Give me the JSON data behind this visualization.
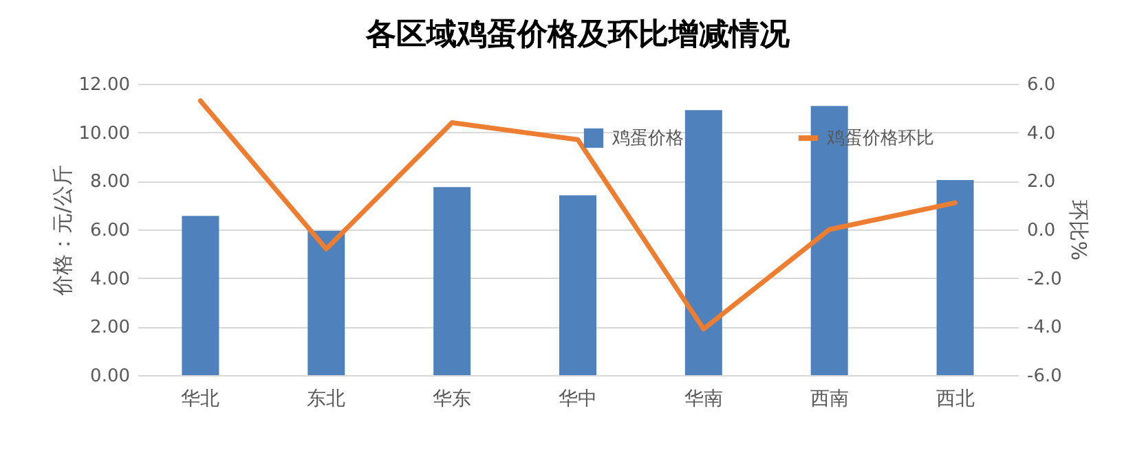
{
  "chart_data": {
    "type": "bar",
    "title": "各区域鸡蛋价格及环比增减情况",
    "ylabel": "价格：元/公斤",
    "y2label": "环比%",
    "categories": [
      "华北",
      "东北",
      "华东",
      "华中",
      "华南",
      "西南",
      "西北"
    ],
    "series": [
      {
        "name": "鸡蛋价格",
        "color": "#4f81bd",
        "values": [
          6.56,
          5.94,
          7.75,
          7.41,
          10.92,
          11.09,
          8.04
        ]
      },
      {
        "name": "鸡蛋价格环比",
        "type": "line",
        "axis": "y2",
        "color": "#ed7d31",
        "values": [
          5.3,
          -0.8,
          4.4,
          3.7,
          -4.1,
          0.0,
          1.1
        ]
      }
    ],
    "ylim": [
      0,
      12
    ],
    "yticks": [
      {
        "value": 0,
        "label": "0.00"
      },
      {
        "value": 2,
        "label": "2.00"
      },
      {
        "value": 4,
        "label": "4.00"
      },
      {
        "value": 6,
        "label": "6.00"
      },
      {
        "value": 8,
        "label": "8.00"
      },
      {
        "value": 10,
        "label": "10.00"
      },
      {
        "value": 12,
        "label": "12.00"
      }
    ],
    "y2lim": [
      -6,
      6
    ],
    "y2ticks": [
      {
        "value": -6,
        "label": "-6.0"
      },
      {
        "value": -4,
        "label": "-4.0"
      },
      {
        "value": -2,
        "label": "-2.0"
      },
      {
        "value": 0,
        "label": "0.0"
      },
      {
        "value": 2,
        "label": "2.0"
      },
      {
        "value": 4,
        "label": "4.0"
      },
      {
        "value": 6,
        "label": "6.0"
      }
    ],
    "grid": "y",
    "legend": "top right"
  }
}
